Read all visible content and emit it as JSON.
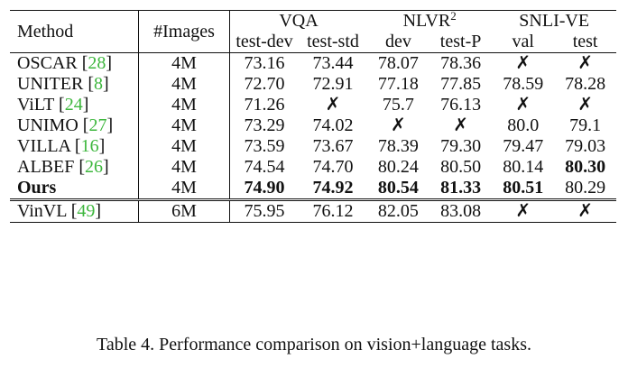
{
  "header": {
    "method": "Method",
    "images": "#Images",
    "groups": [
      {
        "name": "VQA",
        "sup": "",
        "subs": [
          "test-dev",
          "test-std"
        ]
      },
      {
        "name": "NLVR",
        "sup": "2",
        "subs": [
          "dev",
          "test-P"
        ]
      },
      {
        "name": "SNLI-VE",
        "sup": "",
        "subs": [
          "val",
          "test"
        ]
      }
    ]
  },
  "rows": [
    {
      "name": "OSCAR",
      "ref": "28",
      "images": "4M",
      "cells": [
        "73.16",
        "73.44",
        "78.07",
        "78.36",
        "✗",
        "✗"
      ],
      "bold": [
        false,
        false,
        false,
        false,
        false,
        false
      ],
      "name_bold": false
    },
    {
      "name": "UNITER",
      "ref": "8",
      "images": "4M",
      "cells": [
        "72.70",
        "72.91",
        "77.18",
        "77.85",
        "78.59",
        "78.28"
      ],
      "bold": [
        false,
        false,
        false,
        false,
        false,
        false
      ],
      "name_bold": false
    },
    {
      "name": "ViLT",
      "ref": "24",
      "images": "4M",
      "cells": [
        "71.26",
        "✗",
        "75.7",
        "76.13",
        "✗",
        "✗"
      ],
      "bold": [
        false,
        false,
        false,
        false,
        false,
        false
      ],
      "name_bold": false
    },
    {
      "name": "UNIMO",
      "ref": "27",
      "images": "4M",
      "cells": [
        "73.29",
        "74.02",
        "✗",
        "✗",
        "80.0",
        "79.1"
      ],
      "bold": [
        false,
        false,
        false,
        false,
        false,
        false
      ],
      "name_bold": false
    },
    {
      "name": "VILLA",
      "ref": "16",
      "images": "4M",
      "cells": [
        "73.59",
        "73.67",
        "78.39",
        "79.30",
        "79.47",
        "79.03"
      ],
      "bold": [
        false,
        false,
        false,
        false,
        false,
        false
      ],
      "name_bold": false
    },
    {
      "name": "ALBEF",
      "ref": "26",
      "images": "4M",
      "cells": [
        "74.54",
        "74.70",
        "80.24",
        "80.50",
        "80.14",
        "80.30"
      ],
      "bold": [
        false,
        false,
        false,
        false,
        false,
        true
      ],
      "name_bold": false
    },
    {
      "name": "Ours",
      "ref": "",
      "images": "4M",
      "cells": [
        "74.90",
        "74.92",
        "80.54",
        "81.33",
        "80.51",
        "80.29"
      ],
      "bold": [
        true,
        true,
        true,
        true,
        true,
        false
      ],
      "name_bold": true
    }
  ],
  "extra_row": {
    "name": "VinVL",
    "ref": "49",
    "images": "6M",
    "cells": [
      "75.95",
      "76.12",
      "82.05",
      "83.08",
      "✗",
      "✗"
    ]
  },
  "caption": "Table 4. Performance comparison on vision+language tasks."
}
